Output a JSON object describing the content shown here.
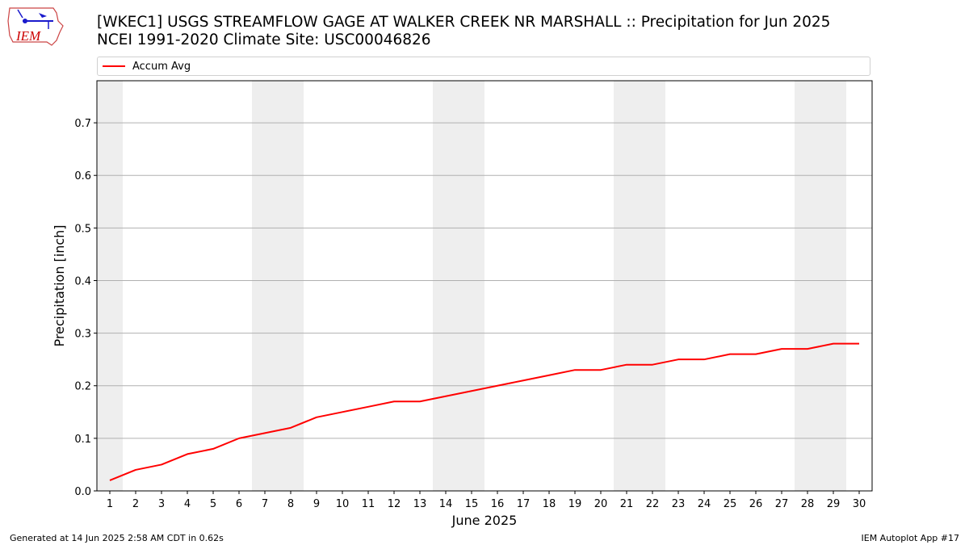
{
  "title_line1": "[WKEC1] USGS STREAMFLOW GAGE  AT WALKER CREEK NR MARSHALL :: Precipitation for Jun 2025",
  "title_line2": "NCEI 1991-2020 Climate Site: USC00046826",
  "logo_text": "IEM",
  "footer_left": "Generated at 14 Jun 2025 2:58 AM CDT in 0.62s",
  "footer_right": "IEM Autoplot App #17",
  "colors": {
    "series": "#ff0000",
    "weekend_shade": "#eeeeee",
    "grid": "#b0b0b0",
    "logo": "#cc0000"
  },
  "chart_data": {
    "type": "line",
    "xlabel": "June 2025",
    "ylabel": "Precipitation [inch]",
    "x": [
      1,
      2,
      3,
      4,
      5,
      6,
      7,
      8,
      9,
      10,
      11,
      12,
      13,
      14,
      15,
      16,
      17,
      18,
      19,
      20,
      21,
      22,
      23,
      24,
      25,
      26,
      27,
      28,
      29,
      30
    ],
    "xlim": [
      0.5,
      30.5
    ],
    "ylim": [
      0.0,
      0.78
    ],
    "yticks": [
      0.0,
      0.1,
      0.2,
      0.3,
      0.4,
      0.5,
      0.6,
      0.7
    ],
    "ytick_labels": [
      "0.0",
      "0.1",
      "0.2",
      "0.3",
      "0.4",
      "0.5",
      "0.6",
      "0.7"
    ],
    "grid": "horizontal",
    "legend": "top, above plot",
    "shaded_weekend_days": [
      [
        1,
        1
      ],
      [
        7,
        8
      ],
      [
        14,
        15
      ],
      [
        21,
        22
      ],
      [
        28,
        29
      ]
    ],
    "series": [
      {
        "name": "Accum Avg",
        "color": "#ff0000",
        "values": [
          0.02,
          0.04,
          0.05,
          0.07,
          0.08,
          0.1,
          0.11,
          0.12,
          0.14,
          0.15,
          0.16,
          0.17,
          0.17,
          0.18,
          0.19,
          0.2,
          0.21,
          0.22,
          0.23,
          0.23,
          0.24,
          0.24,
          0.25,
          0.25,
          0.26,
          0.26,
          0.27,
          0.27,
          0.28,
          0.28
        ]
      }
    ]
  }
}
